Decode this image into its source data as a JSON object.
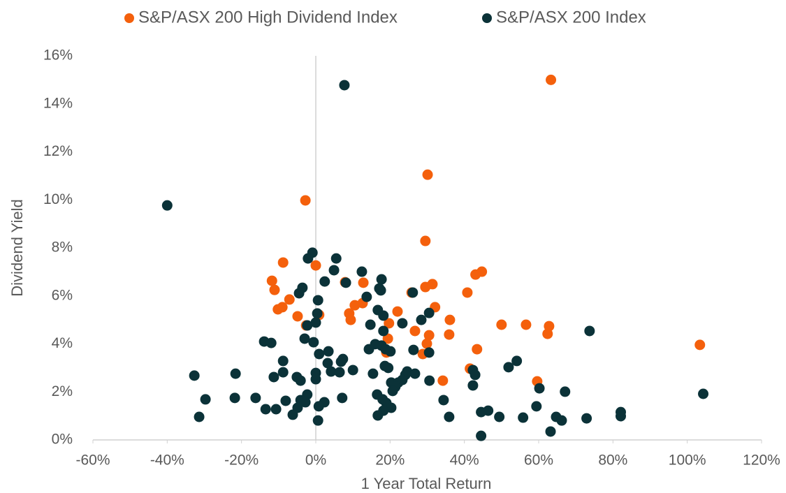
{
  "chart_data": {
    "type": "scatter",
    "x_label": "1 Year Total Return",
    "y_label": "Dividend Yield",
    "xlim": [
      -60,
      120
    ],
    "ylim": [
      0,
      16
    ],
    "xticks": [
      {
        "value": -60,
        "label": "-60%"
      },
      {
        "value": -40,
        "label": "-40%"
      },
      {
        "value": -20,
        "label": "-20%"
      },
      {
        "value": 0,
        "label": "0%"
      },
      {
        "value": 20,
        "label": "20%"
      },
      {
        "value": 40,
        "label": "40%"
      },
      {
        "value": 60,
        "label": "60%"
      },
      {
        "value": 80,
        "label": "80%"
      },
      {
        "value": 100,
        "label": "100%"
      },
      {
        "value": 120,
        "label": "120%"
      }
    ],
    "yticks": [
      {
        "value": 0,
        "label": "0%"
      },
      {
        "value": 2,
        "label": "2%"
      },
      {
        "value": 4,
        "label": "4%"
      },
      {
        "value": 6,
        "label": "6%"
      },
      {
        "value": 8,
        "label": "8%"
      },
      {
        "value": 10,
        "label": "10%"
      },
      {
        "value": 12,
        "label": "12%"
      },
      {
        "value": 14,
        "label": "14%"
      },
      {
        "value": 16,
        "label": "16%"
      }
    ],
    "grid": false,
    "legend": "top",
    "series": [
      {
        "name": "S&P/ASX 200 High Dividend Index",
        "color": "#f4600c",
        "x": [
          63.3,
          30.1,
          -2.8,
          29.5,
          -8.8,
          0,
          44.7,
          43.0,
          7.9,
          -11.8,
          12.8,
          31.4,
          29.5,
          40.8,
          25.8,
          -11.1,
          -7.1,
          12.6,
          10.5,
          32.1,
          -9.0,
          -10.2,
          22.0,
          9.0,
          0.9,
          -4.9,
          9.4,
          36.1,
          19.7,
          50,
          56.6,
          62.8,
          -2.6,
          26.7,
          30.5,
          35.9,
          62.4,
          19.4,
          29.9,
          103.4,
          43.4,
          28.8,
          19.0,
          41.5,
          34.2,
          59.6
        ],
        "y": [
          15.0,
          11.05,
          9.98,
          8.29,
          7.39,
          7.27,
          7.01,
          6.89,
          6.57,
          6.63,
          6.55,
          6.49,
          6.37,
          6.14,
          6.14,
          6.25,
          5.85,
          5.7,
          5.61,
          5.53,
          5.53,
          5.44,
          5.35,
          5.27,
          5.21,
          5.15,
          5.0,
          5.0,
          4.86,
          4.8,
          4.8,
          4.74,
          4.77,
          4.54,
          4.36,
          4.39,
          4.42,
          4.22,
          4.01,
          3.96,
          3.78,
          3.58,
          3.64,
          2.97,
          2.47,
          2.44
        ]
      },
      {
        "name": "S&P/ASX 200 Index",
        "color": "#0b3238",
        "x": [
          7.7,
          -40.0,
          -0.9,
          -2.1,
          5.5,
          4.9,
          12.4,
          17.7,
          2.4,
          8.1,
          -3.6,
          17.1,
          17.5,
          26.1,
          -4.5,
          13.7,
          0.6,
          16.7,
          30.5,
          0.4,
          18.2,
          28.4,
          0,
          23.3,
          14.7,
          -2.3,
          18.2,
          73.7,
          -3.0,
          -13.9,
          -12.0,
          -0.6,
          16.0,
          17.7,
          18.8,
          26.3,
          3.4,
          14.3,
          20.1,
          30.5,
          0.9,
          7.3,
          -8.8,
          6.8,
          54.1,
          3.2,
          18.6,
          19.5,
          51.9,
          10.0,
          42.3,
          4.1,
          6.4,
          -8.8,
          24.6,
          0,
          -21.6,
          15.4,
          26.7,
          -32.7,
          24.1,
          42.9,
          -11.3,
          -5.1,
          0,
          23.3,
          -4.1,
          30.6,
          20.3,
          22.2,
          42.3,
          21.4,
          60.2,
          20.7,
          67.1,
          104.3,
          -2.3,
          16.5,
          7.1,
          -21.8,
          -16.2,
          -29.7,
          18.0,
          -4.1,
          -8.1,
          2.3,
          -2.8,
          34.4,
          19.0,
          0.8,
          59.4,
          20.3,
          -4.9,
          -13.5,
          -10.7,
          46.4,
          18.2,
          44.5,
          82.1,
          -6.2,
          16.7,
          -31.4,
          35.9,
          49.4,
          55.8,
          64.7,
          72.9,
          82.1,
          66.2,
          0.6,
          63.2,
          44.5
        ],
        "y": [
          14.78,
          9.77,
          7.8,
          7.56,
          7.56,
          7.07,
          7.01,
          6.69,
          6.6,
          6.55,
          6.34,
          6.31,
          6.23,
          6.14,
          6.11,
          5.96,
          5.82,
          5.41,
          5.29,
          5.27,
          5.18,
          5.0,
          4.89,
          4.86,
          4.8,
          4.77,
          4.54,
          4.54,
          4.22,
          4.1,
          4.04,
          4.07,
          3.99,
          3.93,
          3.78,
          3.75,
          3.69,
          3.78,
          3.69,
          3.64,
          3.58,
          3.37,
          3.29,
          3.26,
          3.29,
          3.2,
          3.08,
          3.0,
          3.03,
          2.91,
          2.91,
          2.85,
          2.82,
          2.82,
          2.85,
          2.79,
          2.76,
          2.76,
          2.76,
          2.68,
          2.71,
          2.71,
          2.62,
          2.62,
          2.53,
          2.5,
          2.47,
          2.47,
          2.39,
          2.39,
          2.27,
          2.21,
          2.15,
          2.04,
          2.01,
          1.92,
          1.89,
          1.89,
          1.75,
          1.75,
          1.75,
          1.69,
          1.69,
          1.66,
          1.63,
          1.57,
          1.57,
          1.66,
          1.54,
          1.4,
          1.4,
          1.34,
          1.34,
          1.28,
          1.28,
          1.22,
          1.22,
          1.16,
          1.16,
          1.05,
          1.02,
          0.96,
          0.96,
          0.96,
          0.93,
          0.96,
          0.9,
          0.99,
          0.81,
          0.81,
          0.35,
          0.17
        ]
      }
    ]
  }
}
